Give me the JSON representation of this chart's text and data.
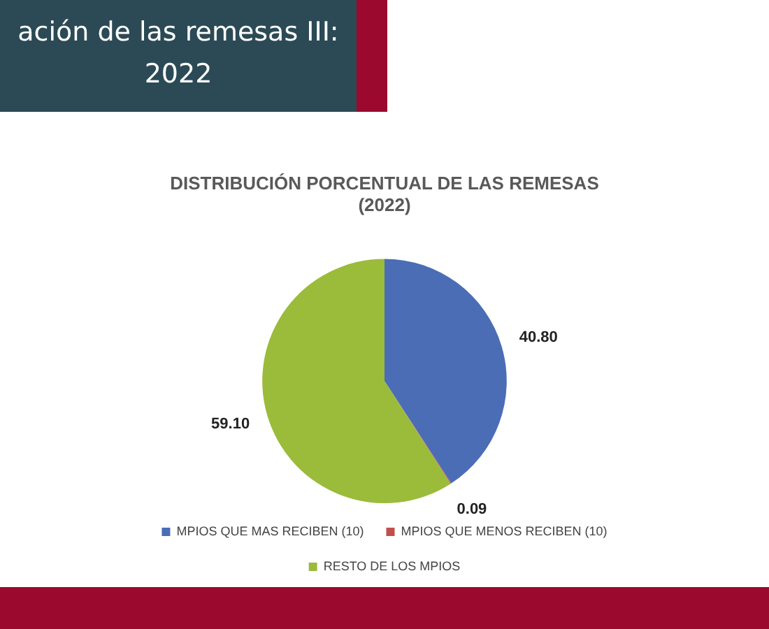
{
  "chart_data": {
    "type": "pie",
    "title": "DISTRIBUCIÓN PORCENTUAL DE LAS REMESAS\n(2022)",
    "categories": [
      "MPIOS QUE MAS RECIBEN (10)",
      "MPIOS QUE MENOS RECIBEN (10)",
      "RESTO DE LOS MPIOS"
    ],
    "values": [
      40.8,
      0.09,
      59.1
    ],
    "value_labels": [
      "40.80",
      "0.09",
      "59.10"
    ],
    "colors": [
      "#4a6db5",
      "#c0504d",
      "#9bbb3b"
    ],
    "legend": "bottom",
    "annotations": [
      "ación de las remesas III:\n2022"
    ]
  }
}
